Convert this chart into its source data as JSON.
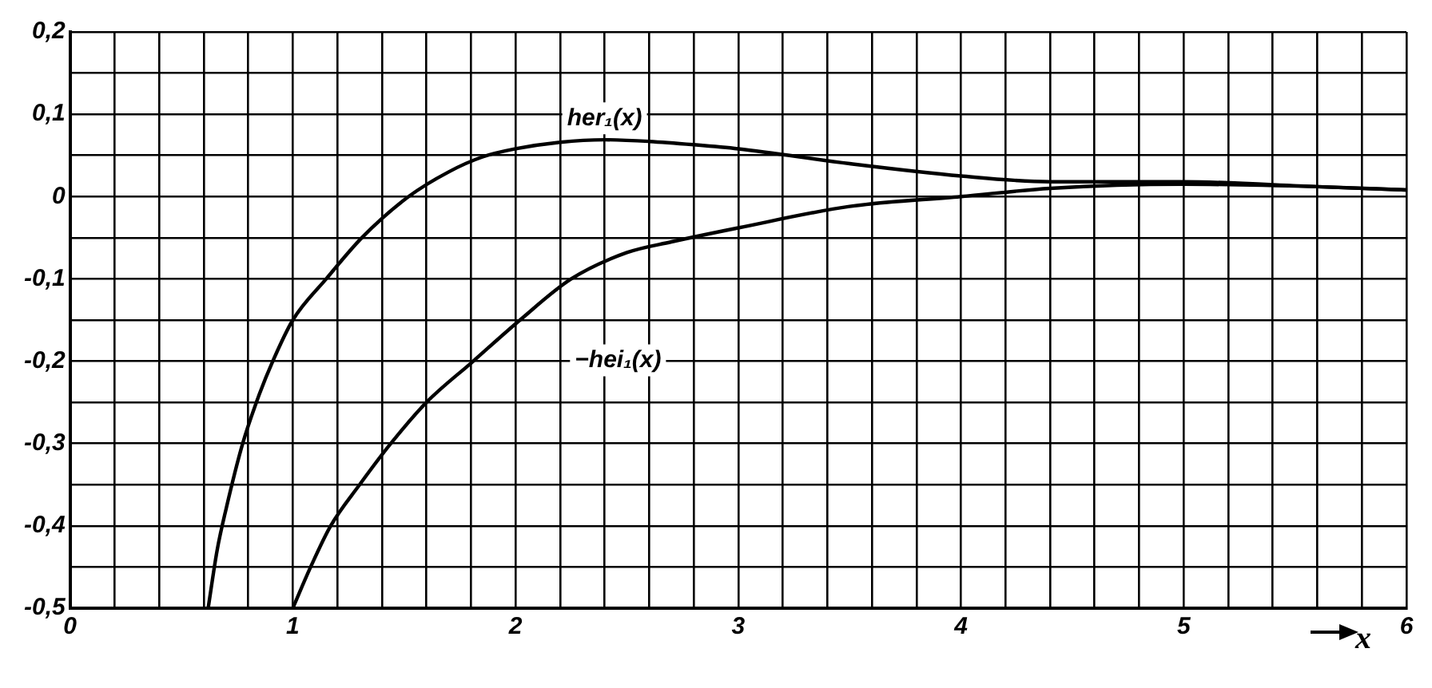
{
  "chart_data": {
    "type": "line",
    "xlabel": "x",
    "series": [
      {
        "name": "her₁(x)",
        "color": "#000000",
        "x": [
          0.62,
          0.66,
          0.7,
          0.775,
          0.85,
          0.91,
          1.0,
          1.15,
          1.31,
          1.52,
          1.7,
          1.85,
          2.0,
          2.2,
          2.4,
          2.6,
          2.8,
          3.0,
          3.5,
          4.0,
          4.4,
          5.0,
          5.6,
          6.0
        ],
        "values": [
          -0.5,
          -0.43,
          -0.38,
          -0.3,
          -0.24,
          -0.2,
          -0.15,
          -0.1,
          -0.05,
          0.0,
          0.03,
          0.048,
          0.058,
          0.066,
          0.069,
          0.067,
          0.063,
          0.058,
          0.04,
          0.025,
          0.018,
          0.018,
          0.012,
          0.008
        ]
      },
      {
        "name": "−hei₁(x)",
        "color": "#000000",
        "x": [
          1.0,
          1.08,
          1.17,
          1.3,
          1.44,
          1.6,
          1.81,
          2.02,
          2.25,
          2.5,
          2.7,
          3.0,
          3.5,
          4.0,
          4.4,
          5.0,
          5.6,
          6.0
        ],
        "values": [
          -0.5,
          -0.45,
          -0.4,
          -0.35,
          -0.3,
          -0.25,
          -0.2,
          -0.15,
          -0.1,
          -0.068,
          -0.055,
          -0.038,
          -0.012,
          0.0,
          0.01,
          0.015,
          0.012,
          0.008
        ]
      }
    ],
    "xlim": [
      0,
      6
    ],
    "xticks": [
      0,
      {
        "value": 0.2,
        "label": null
      },
      {
        "value": 0.4,
        "label": null
      },
      {
        "value": 0.6,
        "label": null
      },
      {
        "value": 0.8,
        "label": null
      },
      1,
      {
        "value": 1.2,
        "label": null
      },
      {
        "value": 1.4,
        "label": null
      },
      {
        "value": 1.6,
        "label": null
      },
      {
        "value": 1.8,
        "label": null
      },
      2,
      {
        "value": 2.2,
        "label": null
      },
      {
        "value": 2.4,
        "label": null
      },
      {
        "value": 2.6,
        "label": null
      },
      {
        "value": 2.8,
        "label": null
      },
      3,
      {
        "value": 3.2,
        "label": null
      },
      {
        "value": 3.4,
        "label": null
      },
      {
        "value": 3.6,
        "label": null
      },
      {
        "value": 3.8,
        "label": null
      },
      4,
      {
        "value": 4.2,
        "label": null
      },
      {
        "value": 4.4,
        "label": null
      },
      {
        "value": 4.6,
        "label": null
      },
      {
        "value": 4.8,
        "label": null
      },
      5,
      {
        "value": 5.2,
        "label": null
      },
      {
        "value": 5.4,
        "label": null
      },
      {
        "value": 5.6,
        "label": null
      },
      {
        "value": 5.8,
        "label": null
      },
      6
    ],
    "ylim": [
      -0.5,
      0.2
    ],
    "yticks": [
      {
        "value": -0.5,
        "label": "-0,5"
      },
      {
        "value": -0.45,
        "label": null
      },
      {
        "value": -0.4,
        "label": "-0,4"
      },
      {
        "value": -0.35,
        "label": null
      },
      {
        "value": -0.3,
        "label": "-0,3"
      },
      {
        "value": -0.25,
        "label": null
      },
      {
        "value": -0.2,
        "label": "-0,2"
      },
      {
        "value": -0.15,
        "label": null
      },
      {
        "value": -0.1,
        "label": "-0,1"
      },
      {
        "value": -0.05,
        "label": null
      },
      0,
      {
        "value": 0.05,
        "label": null
      },
      {
        "value": 0.1,
        "label": "0,1"
      },
      {
        "value": 0.15,
        "label": null
      },
      {
        "value": 0.2,
        "label": "0,2"
      }
    ],
    "grid": true,
    "legend": false,
    "marker": "none",
    "line_style": "solid"
  }
}
